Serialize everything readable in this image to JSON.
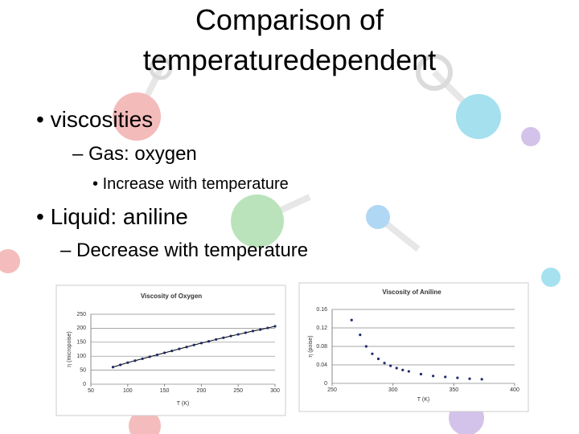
{
  "slide": {
    "title": "Comparison of temperaturedependent",
    "bullets": [
      "viscosities",
      "Gas: oxygen",
      "Increase with temperature",
      "Liquid: aniline",
      "Decrease with temperature"
    ]
  },
  "chart_data": [
    {
      "type": "line",
      "markers": true,
      "title": "Viscosity of Oxygen",
      "x_label": "T (K)",
      "y_label": "η (micropoise)",
      "x": [
        80,
        90,
        100,
        110,
        120,
        130,
        140,
        150,
        160,
        170,
        180,
        190,
        200,
        210,
        220,
        230,
        240,
        250,
        260,
        270,
        280,
        290,
        300
      ],
      "values": [
        61,
        69,
        77,
        84,
        91,
        98,
        105,
        112,
        119,
        126,
        133,
        140,
        147,
        153,
        160,
        166,
        172,
        178,
        184,
        190,
        195,
        201,
        207
      ],
      "color": "#1f2a6b",
      "line_color": "#000000",
      "xlim": [
        50,
        300
      ],
      "ylim": [
        0,
        250
      ],
      "xticks": [
        50,
        100,
        150,
        200,
        250,
        300
      ],
      "yticks": [
        0,
        50,
        100,
        150,
        200,
        250
      ],
      "grid": true
    },
    {
      "type": "scatter",
      "title": "Viscosity of Aniline",
      "x_label": "T (K)",
      "y_label": "η (poise)",
      "x": [
        266,
        273,
        278,
        283,
        288,
        293,
        298,
        303,
        308,
        313,
        323,
        333,
        343,
        353,
        363,
        373
      ],
      "values": [
        0.137,
        0.105,
        0.08,
        0.064,
        0.053,
        0.044,
        0.038,
        0.033,
        0.029,
        0.026,
        0.02,
        0.016,
        0.014,
        0.012,
        0.01,
        0.009
      ],
      "color": "#1f2a6b",
      "xlim": [
        250,
        400
      ],
      "ylim": [
        0,
        0.16
      ],
      "xticks": [
        250,
        300,
        350,
        400
      ],
      "yticks": [
        0,
        0.04,
        0.08,
        0.12,
        0.16
      ],
      "grid": true
    }
  ]
}
